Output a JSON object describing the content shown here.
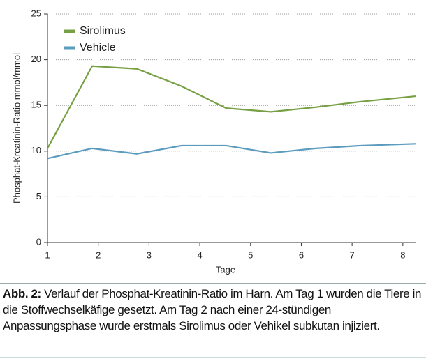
{
  "chart_data": {
    "type": "line",
    "ylabel": "Phosphat-Kreatinin-Ratio mmol/mmol",
    "xlabel": "Tage",
    "x": [
      1,
      1.88,
      2.76,
      3.64,
      4.52,
      5.4,
      6.28,
      7.16,
      8.25
    ],
    "series": [
      {
        "name": "Sirolimus",
        "color": "#76a043",
        "values": [
          10.3,
          19.3,
          19.0,
          17.1,
          14.7,
          14.3,
          14.8,
          15.4,
          16.0
        ]
      },
      {
        "name": "Vehicle",
        "color": "#5b9bbd",
        "values": [
          9.2,
          10.3,
          9.7,
          10.6,
          10.6,
          9.8,
          10.3,
          10.6,
          10.8
        ]
      }
    ],
    "xlim": [
      1,
      8.25
    ],
    "xticks": [
      1,
      2,
      3,
      4,
      5,
      6,
      7,
      8
    ],
    "ylim": [
      0,
      25
    ],
    "yticks": [
      0,
      5,
      10,
      15,
      20,
      25
    ],
    "grid": true,
    "legend": "upper left"
  },
  "caption": {
    "label": "Abb. 2:",
    "text": "Verlauf der Phosphat-Kreatinin-Ratio im Harn. Am Tag 1 wurden die Tiere in die Stoffwechselkäfige gesetzt. Am Tag 2 nach einer 24-stündigen Anpassungsphase wurde erstmals Sirolimus oder Vehikel subkutan injiziert."
  }
}
